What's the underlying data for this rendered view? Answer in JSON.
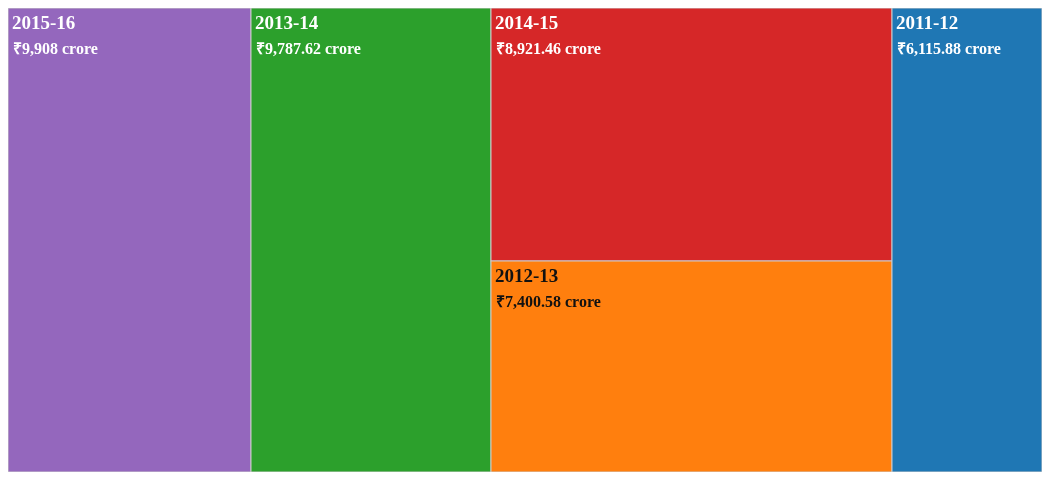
{
  "chart_data": {
    "type": "other",
    "categories": [
      "2015-16",
      "2013-14",
      "2014-15",
      "2012-13",
      "2011-12"
    ],
    "values": [
      9908,
      9787.62,
      8921.46,
      7400.58,
      6115.88
    ],
    "value_labels": [
      "₹9,908 crore",
      "₹9,787.62 crore",
      "₹8,921.46 crore",
      "₹7,400.58 crore",
      "₹6,115.88 crore"
    ],
    "colors": [
      "#9467bd",
      "#2ca02c",
      "#d62728",
      "#ff7f0e",
      "#1f77b4"
    ]
  }
}
